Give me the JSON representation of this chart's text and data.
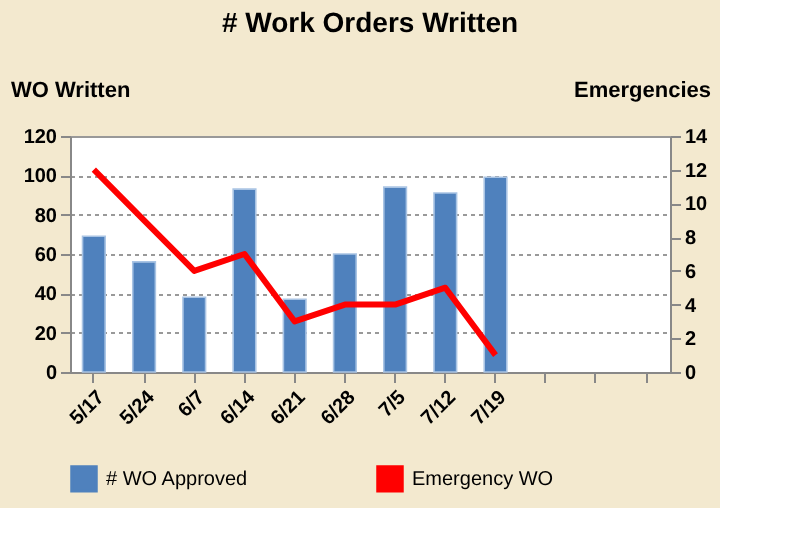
{
  "chart_data": {
    "type": "bar",
    "title": "# Work Orders Written",
    "ylabel": "WO Written",
    "y2label": "Emergencies",
    "categories": [
      "5/17",
      "5/24",
      "6/7",
      "6/14",
      "6/21",
      "6/28",
      "7/5",
      "7/12",
      "7/19",
      null,
      null,
      null
    ],
    "series": [
      {
        "name": "# WO Approved",
        "color": "#4f81bd",
        "values": [
          69,
          56,
          38,
          93,
          37,
          60,
          94,
          91,
          99,
          null,
          null,
          null
        ]
      },
      {
        "name": "Emergency WO",
        "color": "#ff0000",
        "type": "line",
        "axis": "y2",
        "values": [
          12,
          9,
          6,
          7,
          3,
          4,
          4,
          5,
          1,
          null,
          null,
          null
        ]
      }
    ],
    "ylim": [
      0,
      120
    ],
    "yticks": [
      0,
      20,
      40,
      60,
      80,
      100,
      120
    ],
    "y2lim": [
      0,
      14
    ],
    "y2ticks": [
      0,
      2,
      4,
      6,
      8,
      10,
      12,
      14
    ],
    "grid": "y",
    "legend": "bottom",
    "marker": "none",
    "line_style": "solid"
  }
}
